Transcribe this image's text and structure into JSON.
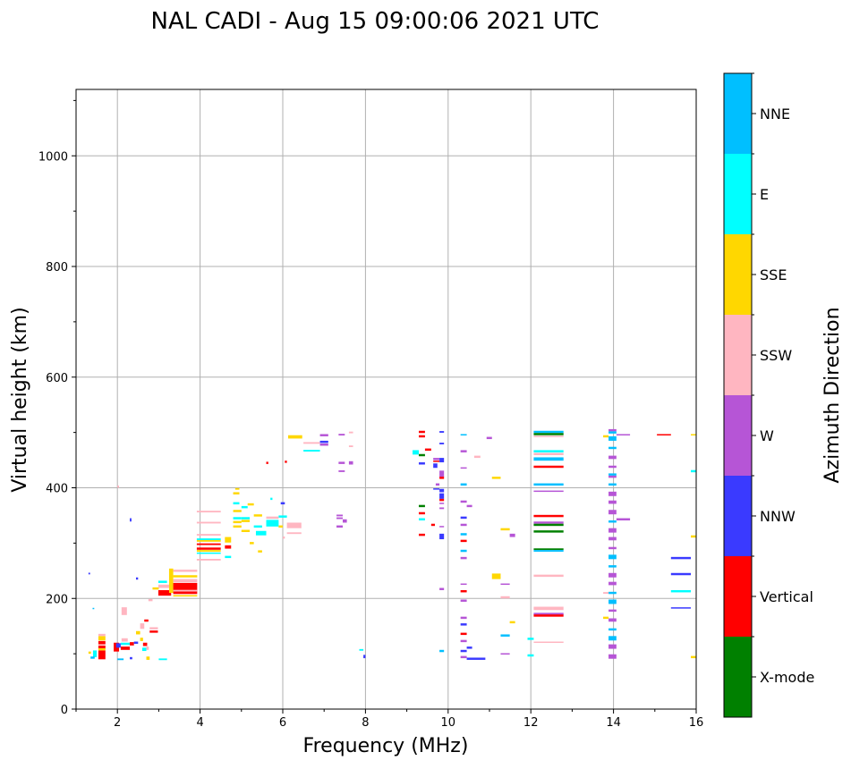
{
  "chart_data": {
    "type": "scatter",
    "title": "NAL CADI - Aug 15 09:00:06 2021 UTC",
    "xlabel": "Frequency (MHz)",
    "ylabel": "Virtual height (km)",
    "xlim": [
      1,
      16
    ],
    "ylim": [
      0,
      1120
    ],
    "xticks": [
      2,
      4,
      6,
      8,
      10,
      12,
      14,
      16
    ],
    "yticks": [
      0,
      200,
      400,
      600,
      800,
      1000
    ],
    "grid": true,
    "colorbar": {
      "label": "Azimuth Direction",
      "placement": "right",
      "categories": [
        {
          "name": "X-mode",
          "color": "#008000"
        },
        {
          "name": "Vertical",
          "color": "#ff0000"
        },
        {
          "name": "NNW",
          "color": "#3a3aff"
        },
        {
          "name": "W",
          "color": "#b655d6"
        },
        {
          "name": "SSW",
          "color": "#ffb6c1"
        },
        {
          "name": "SSE",
          "color": "#ffd700"
        },
        {
          "name": "E",
          "color": "#00ffff"
        },
        {
          "name": "NNE",
          "color": "#00bfff"
        }
      ]
    },
    "echo_fields": [
      "freq_start_MHz",
      "freq_end_MHz",
      "height_km",
      "category_index",
      "height_span_km"
    ],
    "echoes": [
      [
        1.54,
        1.71,
        98,
        1,
        16
      ],
      [
        1.54,
        1.71,
        112,
        1,
        6
      ],
      [
        1.54,
        1.71,
        120,
        1,
        6
      ],
      [
        1.54,
        1.71,
        128,
        5,
        8
      ],
      [
        1.54,
        1.71,
        134,
        4,
        4
      ],
      [
        1.54,
        1.71,
        108,
        5,
        4
      ],
      [
        1.41,
        1.5,
        100,
        6,
        12
      ],
      [
        1.35,
        1.45,
        93,
        7,
        4
      ],
      [
        1.3,
        1.36,
        102,
        5,
        4
      ],
      [
        1.3,
        1.34,
        245,
        2,
        3
      ],
      [
        1.4,
        1.44,
        182,
        7,
        2
      ],
      [
        1.91,
        2.04,
        112,
        1,
        16
      ],
      [
        1.97,
        2.08,
        115,
        2,
        8
      ],
      [
        2.08,
        2.3,
        110,
        1,
        6
      ],
      [
        2.08,
        2.3,
        118,
        6,
        4
      ],
      [
        2.1,
        2.23,
        177,
        4,
        14
      ],
      [
        2.1,
        2.25,
        125,
        4,
        6
      ],
      [
        2.3,
        2.4,
        118,
        1,
        6
      ],
      [
        2.4,
        2.5,
        120,
        2,
        4
      ],
      [
        2.45,
        2.55,
        138,
        5,
        6
      ],
      [
        2.55,
        2.65,
        150,
        4,
        10
      ],
      [
        2.62,
        2.72,
        117,
        1,
        6
      ],
      [
        2.6,
        2.7,
        108,
        6,
        6
      ],
      [
        2.55,
        2.62,
        126,
        5,
        6
      ],
      [
        2.7,
        2.76,
        110,
        4,
        6
      ],
      [
        2.78,
        2.98,
        140,
        1,
        4
      ],
      [
        2.78,
        2.98,
        146,
        4,
        4
      ],
      [
        2.65,
        2.75,
        160,
        1,
        4
      ],
      [
        2.0,
        2.15,
        90,
        7,
        3
      ],
      [
        2.3,
        2.36,
        92,
        2,
        4
      ],
      [
        2.7,
        2.78,
        92,
        5,
        6
      ],
      [
        3.0,
        3.2,
        90,
        6,
        3
      ],
      [
        2.3,
        2.34,
        342,
        2,
        6
      ],
      [
        2.0,
        2.04,
        402,
        4,
        4
      ],
      [
        2.45,
        2.5,
        236,
        2,
        4
      ],
      [
        2.99,
        3.2,
        230,
        6,
        4
      ],
      [
        2.99,
        3.3,
        222,
        4,
        6
      ],
      [
        2.99,
        3.3,
        210,
        1,
        10
      ],
      [
        3.25,
        3.35,
        232,
        5,
        44
      ],
      [
        2.75,
        2.85,
        197,
        4,
        4
      ],
      [
        2.85,
        3.0,
        218,
        5,
        4
      ],
      [
        3.35,
        3.93,
        250,
        4,
        4
      ],
      [
        3.35,
        3.93,
        240,
        5,
        4
      ],
      [
        3.35,
        3.93,
        232,
        4,
        6
      ],
      [
        3.35,
        3.93,
        218,
        1,
        20
      ],
      [
        3.35,
        3.93,
        214,
        4,
        3
      ],
      [
        3.35,
        3.93,
        205,
        5,
        2
      ],
      [
        3.92,
        4.5,
        357,
        4,
        3
      ],
      [
        3.92,
        4.5,
        337,
        4,
        3
      ],
      [
        3.92,
        4.5,
        315,
        4,
        3
      ],
      [
        3.92,
        4.5,
        307,
        6,
        3
      ],
      [
        3.92,
        4.5,
        304,
        5,
        3
      ],
      [
        3.92,
        4.5,
        298,
        1,
        3
      ],
      [
        3.92,
        4.5,
        290,
        1,
        4
      ],
      [
        3.92,
        4.5,
        286,
        5,
        3
      ],
      [
        3.92,
        4.5,
        282,
        6,
        2
      ],
      [
        3.92,
        4.5,
        270,
        4,
        3
      ],
      [
        4.6,
        4.75,
        293,
        1,
        6
      ],
      [
        4.6,
        4.75,
        306,
        5,
        10
      ],
      [
        4.6,
        4.75,
        275,
        6,
        4
      ],
      [
        4.85,
        4.95,
        398,
        5,
        3
      ],
      [
        4.8,
        4.95,
        390,
        5,
        4
      ],
      [
        4.8,
        4.95,
        372,
        6,
        4
      ],
      [
        4.8,
        5.0,
        358,
        5,
        4
      ],
      [
        4.8,
        5.0,
        345,
        6,
        4
      ],
      [
        4.8,
        5.0,
        338,
        5,
        4
      ],
      [
        4.8,
        5.0,
        330,
        5,
        4
      ],
      [
        5.0,
        5.15,
        365,
        6,
        4
      ],
      [
        5.0,
        5.2,
        345,
        6,
        4
      ],
      [
        5.0,
        5.2,
        340,
        5,
        4
      ],
      [
        5.0,
        5.2,
        322,
        5,
        4
      ],
      [
        5.15,
        5.3,
        370,
        5,
        4
      ],
      [
        5.3,
        5.5,
        350,
        5,
        4
      ],
      [
        5.3,
        5.5,
        330,
        6,
        4
      ],
      [
        5.35,
        5.6,
        318,
        6,
        8
      ],
      [
        5.6,
        5.9,
        336,
        6,
        12
      ],
      [
        5.6,
        5.9,
        346,
        4,
        4
      ],
      [
        5.9,
        6.1,
        348,
        6,
        4
      ],
      [
        5.9,
        6.0,
        330,
        5,
        4
      ],
      [
        5.2,
        5.3,
        300,
        5,
        4
      ],
      [
        5.4,
        5.5,
        285,
        5,
        4
      ],
      [
        5.7,
        5.75,
        380,
        6,
        4
      ],
      [
        5.95,
        6.05,
        372,
        2,
        4
      ],
      [
        6.1,
        6.45,
        332,
        4,
        10
      ],
      [
        6.1,
        6.45,
        318,
        4,
        3
      ],
      [
        6.0,
        6.05,
        310,
        4,
        4
      ],
      [
        6.13,
        6.47,
        492,
        5,
        6
      ],
      [
        6.5,
        6.9,
        481,
        4,
        3
      ],
      [
        6.5,
        6.9,
        467,
        6,
        3
      ],
      [
        6.9,
        7.1,
        495,
        3,
        4
      ],
      [
        6.9,
        7.1,
        483,
        2,
        4
      ],
      [
        6.9,
        7.1,
        478,
        3,
        4
      ],
      [
        5.6,
        5.65,
        445,
        1,
        4
      ],
      [
        6.05,
        6.1,
        447,
        1,
        4
      ],
      [
        7.3,
        7.45,
        350,
        3,
        3
      ],
      [
        7.3,
        7.45,
        345,
        3,
        3
      ],
      [
        7.45,
        7.55,
        340,
        3,
        6
      ],
      [
        7.3,
        7.45,
        330,
        3,
        4
      ],
      [
        7.35,
        7.5,
        445,
        3,
        4
      ],
      [
        7.35,
        7.5,
        430,
        3,
        3
      ],
      [
        7.6,
        7.7,
        445,
        3,
        6
      ],
      [
        7.6,
        7.7,
        475,
        4,
        3
      ],
      [
        7.6,
        7.7,
        500,
        4,
        3
      ],
      [
        7.35,
        7.5,
        496,
        3,
        3
      ],
      [
        7.85,
        7.95,
        107,
        6,
        3
      ],
      [
        7.95,
        8.0,
        95,
        2,
        6
      ],
      [
        9.29,
        9.44,
        501,
        1,
        4
      ],
      [
        9.29,
        9.44,
        493,
        1,
        4
      ],
      [
        9.79,
        9.9,
        501,
        2,
        3
      ],
      [
        9.79,
        9.9,
        480,
        2,
        3
      ],
      [
        9.44,
        9.59,
        469,
        1,
        4
      ],
      [
        9.14,
        9.29,
        464,
        6,
        8
      ],
      [
        9.29,
        9.44,
        459,
        0,
        4
      ],
      [
        9.64,
        9.79,
        452,
        3,
        4
      ],
      [
        9.64,
        9.79,
        448,
        1,
        2
      ],
      [
        9.79,
        9.9,
        450,
        2,
        8
      ],
      [
        9.64,
        9.74,
        440,
        2,
        8
      ],
      [
        9.29,
        9.44,
        444,
        2,
        4
      ],
      [
        9.79,
        9.9,
        425,
        3,
        12
      ],
      [
        9.79,
        9.9,
        418,
        1,
        4
      ],
      [
        9.7,
        9.79,
        406,
        3,
        4
      ],
      [
        9.64,
        9.79,
        398,
        2,
        2
      ],
      [
        9.79,
        9.9,
        395,
        2,
        6
      ],
      [
        9.79,
        9.9,
        385,
        2,
        10
      ],
      [
        9.79,
        9.9,
        378,
        1,
        4
      ],
      [
        9.79,
        9.9,
        372,
        3,
        2
      ],
      [
        9.79,
        9.9,
        363,
        3,
        3
      ],
      [
        9.29,
        9.44,
        367,
        0,
        4
      ],
      [
        9.29,
        9.44,
        354,
        1,
        4
      ],
      [
        9.29,
        9.44,
        343,
        6,
        4
      ],
      [
        9.59,
        9.68,
        333,
        1,
        4
      ],
      [
        9.29,
        9.44,
        315,
        1,
        4
      ],
      [
        9.79,
        9.9,
        312,
        2,
        10
      ],
      [
        9.79,
        9.9,
        330,
        3,
        2
      ],
      [
        9.79,
        9.9,
        217,
        3,
        4
      ],
      [
        9.79,
        9.9,
        105,
        7,
        4
      ],
      [
        10.3,
        10.45,
        496,
        7,
        2
      ],
      [
        10.3,
        10.45,
        466,
        3,
        4
      ],
      [
        10.3,
        10.45,
        436,
        3,
        2
      ],
      [
        10.3,
        10.45,
        406,
        7,
        4
      ],
      [
        10.3,
        10.45,
        375,
        3,
        4
      ],
      [
        10.45,
        10.58,
        367,
        3,
        4
      ],
      [
        10.3,
        10.45,
        346,
        2,
        4
      ],
      [
        10.3,
        10.45,
        333,
        3,
        4
      ],
      [
        10.3,
        10.45,
        316,
        7,
        4
      ],
      [
        10.3,
        10.45,
        304,
        1,
        4
      ],
      [
        10.3,
        10.45,
        286,
        7,
        4
      ],
      [
        10.3,
        10.45,
        273,
        3,
        4
      ],
      [
        10.3,
        10.45,
        226,
        3,
        2
      ],
      [
        10.3,
        10.45,
        213,
        1,
        4
      ],
      [
        10.3,
        10.45,
        196,
        3,
        4
      ],
      [
        10.3,
        10.45,
        165,
        3,
        4
      ],
      [
        10.3,
        10.45,
        153,
        2,
        4
      ],
      [
        10.3,
        10.45,
        136,
        1,
        4
      ],
      [
        10.3,
        10.45,
        123,
        3,
        4
      ],
      [
        10.45,
        10.58,
        111,
        2,
        4
      ],
      [
        10.3,
        10.45,
        105,
        2,
        4
      ],
      [
        10.3,
        10.45,
        94,
        3,
        4
      ],
      [
        10.45,
        10.9,
        91,
        2,
        4
      ],
      [
        10.93,
        11.06,
        490,
        3,
        4
      ],
      [
        10.63,
        10.78,
        456,
        4,
        4
      ],
      [
        11.06,
        11.27,
        418,
        5,
        4
      ],
      [
        11.27,
        11.49,
        325,
        5,
        4
      ],
      [
        11.49,
        11.62,
        314,
        3,
        6
      ],
      [
        11.06,
        11.27,
        240,
        5,
        10
      ],
      [
        11.27,
        11.49,
        226,
        3,
        2
      ],
      [
        11.27,
        11.49,
        202,
        4,
        4
      ],
      [
        11.49,
        11.62,
        157,
        5,
        4
      ],
      [
        11.27,
        11.49,
        133,
        7,
        4
      ],
      [
        11.27,
        11.49,
        100,
        3,
        2
      ],
      [
        11.92,
        12.07,
        127,
        6,
        4
      ],
      [
        11.92,
        12.07,
        97,
        6,
        4
      ],
      [
        12.07,
        12.79,
        501,
        7,
        4
      ],
      [
        12.07,
        12.79,
        497,
        0,
        4
      ],
      [
        12.07,
        12.79,
        493,
        4,
        2
      ],
      [
        12.07,
        12.79,
        466,
        6,
        4
      ],
      [
        12.07,
        12.79,
        461,
        4,
        4
      ],
      [
        12.07,
        12.79,
        452,
        7,
        6
      ],
      [
        12.07,
        12.79,
        438,
        1,
        4
      ],
      [
        12.07,
        12.79,
        406,
        7,
        4
      ],
      [
        12.07,
        12.79,
        394,
        3,
        2
      ],
      [
        12.07,
        12.79,
        349,
        1,
        4
      ],
      [
        12.07,
        12.79,
        337,
        3,
        4
      ],
      [
        12.07,
        12.79,
        333,
        0,
        4
      ],
      [
        12.07,
        12.79,
        321,
        0,
        4
      ],
      [
        12.07,
        12.79,
        289,
        0,
        3
      ],
      [
        12.07,
        12.79,
        286,
        7,
        3
      ],
      [
        12.07,
        12.79,
        241,
        4,
        4
      ],
      [
        12.07,
        12.79,
        182,
        4,
        6
      ],
      [
        12.07,
        12.79,
        172,
        3,
        4
      ],
      [
        12.07,
        12.79,
        169,
        1,
        4
      ],
      [
        12.07,
        12.79,
        121,
        4,
        2
      ],
      [
        13.88,
        14.07,
        504,
        3,
        4
      ],
      [
        13.88,
        14.07,
        500,
        7,
        4
      ],
      [
        13.88,
        14.07,
        489,
        7,
        8
      ],
      [
        13.88,
        14.07,
        472,
        7,
        4
      ],
      [
        13.88,
        14.07,
        455,
        3,
        6
      ],
      [
        13.88,
        14.07,
        438,
        3,
        4
      ],
      [
        13.88,
        14.07,
        424,
        7,
        4
      ],
      [
        13.88,
        14.07,
        420,
        3,
        4
      ],
      [
        13.88,
        14.07,
        406,
        7,
        4
      ],
      [
        13.88,
        14.07,
        389,
        3,
        8
      ],
      [
        13.88,
        14.07,
        374,
        3,
        6
      ],
      [
        13.88,
        14.07,
        356,
        3,
        8
      ],
      [
        13.88,
        14.07,
        339,
        7,
        4
      ],
      [
        13.88,
        14.07,
        323,
        3,
        8
      ],
      [
        13.88,
        14.07,
        308,
        3,
        6
      ],
      [
        13.88,
        14.07,
        291,
        3,
        4
      ],
      [
        13.88,
        14.07,
        275,
        7,
        8
      ],
      [
        13.88,
        14.07,
        258,
        7,
        4
      ],
      [
        13.88,
        14.07,
        242,
        3,
        8
      ],
      [
        13.88,
        14.07,
        227,
        3,
        6
      ],
      [
        13.88,
        14.07,
        210,
        7,
        4
      ],
      [
        13.88,
        14.07,
        194,
        7,
        8
      ],
      [
        13.88,
        14.07,
        178,
        3,
        4
      ],
      [
        13.88,
        14.07,
        161,
        3,
        6
      ],
      [
        13.88,
        14.07,
        144,
        7,
        4
      ],
      [
        13.88,
        14.07,
        128,
        7,
        8
      ],
      [
        13.88,
        14.07,
        113,
        3,
        8
      ],
      [
        13.88,
        14.07,
        95,
        3,
        8
      ],
      [
        13.75,
        13.88,
        493,
        5,
        4
      ],
      [
        13.75,
        13.88,
        165,
        5,
        4
      ],
      [
        13.75,
        13.88,
        210,
        4,
        3
      ],
      [
        14.07,
        14.4,
        496,
        3,
        2
      ],
      [
        14.07,
        14.4,
        343,
        3,
        4
      ],
      [
        15.05,
        15.39,
        496,
        1,
        2
      ],
      [
        15.87,
        16.0,
        496,
        5,
        2
      ],
      [
        15.87,
        16.0,
        430,
        6,
        4
      ],
      [
        15.87,
        16.0,
        312,
        5,
        4
      ],
      [
        15.87,
        16.0,
        94,
        5,
        4
      ],
      [
        15.39,
        15.87,
        273,
        2,
        4
      ],
      [
        15.39,
        15.87,
        244,
        2,
        4
      ],
      [
        15.39,
        15.87,
        213,
        6,
        4
      ],
      [
        15.39,
        15.87,
        183,
        2,
        2
      ]
    ]
  }
}
